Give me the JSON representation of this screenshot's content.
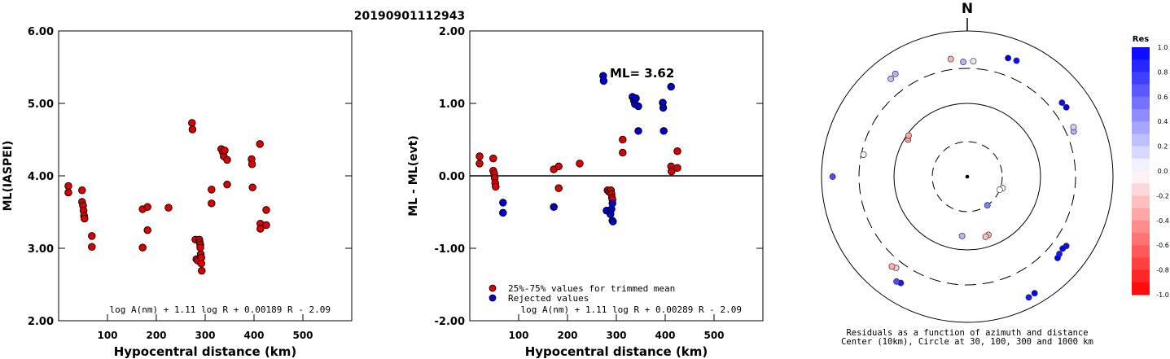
{
  "header": {
    "event_id": "20190901112943"
  },
  "chart_data": [
    {
      "type": "scatter",
      "title": "",
      "xlabel": "Hypocentral distance (km)",
      "ylabel": "ML(IASPEI)",
      "xlim": [
        0,
        600
      ],
      "ylim": [
        2.0,
        6.0
      ],
      "xticks": [
        "100",
        "200",
        "300",
        "400",
        "500"
      ],
      "yticks": [
        "2.00",
        "3.00",
        "4.00",
        "5.00",
        "6.00"
      ],
      "formula": "log A(nm) + 1.11 log R + 0.00189 R - 2.09",
      "series": [
        {
          "color": "#dd0000",
          "points": [
            [
              20,
              3.86
            ],
            [
              20,
              3.77
            ],
            [
              48,
              3.8
            ],
            [
              48,
              3.64
            ],
            [
              50,
              3.59
            ],
            [
              51,
              3.52
            ],
            [
              52,
              3.45
            ],
            [
              53,
              3.41
            ],
            [
              68,
              3.17
            ],
            [
              68,
              3.02
            ],
            [
              172,
              3.54
            ],
            [
              172,
              3.01
            ],
            [
              182,
              3.57
            ],
            [
              182,
              3.25
            ],
            [
              225,
              3.56
            ],
            [
              273,
              4.73
            ],
            [
              274,
              4.64
            ],
            [
              280,
              3.12
            ],
            [
              282,
              2.85
            ],
            [
              285,
              2.83
            ],
            [
              288,
              3.12
            ],
            [
              289,
              3.08
            ],
            [
              290,
              3.05
            ],
            [
              290,
              3.01
            ],
            [
              291,
              2.92
            ],
            [
              292,
              2.87
            ],
            [
              292,
              2.79
            ],
            [
              293,
              2.69
            ],
            [
              313,
              3.81
            ],
            [
              313,
              3.62
            ],
            [
              333,
              4.37
            ],
            [
              336,
              4.33
            ],
            [
              338,
              4.27
            ],
            [
              340,
              4.35
            ],
            [
              345,
              3.88
            ],
            [
              345,
              4.22
            ],
            [
              395,
              4.23
            ],
            [
              396,
              4.16
            ],
            [
              397,
              3.84
            ],
            [
              412,
              4.44
            ],
            [
              413,
              3.34
            ],
            [
              413,
              3.27
            ],
            [
              425,
              3.53
            ],
            [
              425,
              3.32
            ]
          ]
        }
      ]
    },
    {
      "type": "scatter",
      "title": "",
      "xlabel": "Hypocentral distance (km)",
      "ylabel": "ML - ML(evt)",
      "xlim": [
        0,
        600
      ],
      "ylim": [
        -2.0,
        2.0
      ],
      "xticks": [
        "100",
        "200",
        "300",
        "400",
        "500"
      ],
      "yticks": [
        "-2.00",
        "-1.00",
        "0.00",
        "1.00",
        "2.00"
      ],
      "annotation": "ML= 3.62",
      "formula": "log A(nm) + 1.11 log R + 0.00289 R - 2.09",
      "legend": [
        {
          "label": "25%-75% values for trimmed mean",
          "color": "#dd0000"
        },
        {
          "label": "Rejected values",
          "color": "#0000cc"
        }
      ],
      "series": [
        {
          "name": "25%-75% values for trimmed mean",
          "color": "#dd0000",
          "points": [
            [
              20,
              0.27
            ],
            [
              20,
              0.17
            ],
            [
              48,
              0.24
            ],
            [
              48,
              0.07
            ],
            [
              50,
              0.03
            ],
            [
              51,
              -0.03
            ],
            [
              52,
              -0.1
            ],
            [
              53,
              -0.15
            ],
            [
              172,
              0.09
            ],
            [
              182,
              0.13
            ],
            [
              182,
              -0.17
            ],
            [
              225,
              0.17
            ],
            [
              282,
              -0.2
            ],
            [
              285,
              -0.22
            ],
            [
              289,
              -0.2
            ],
            [
              290,
              -0.25
            ],
            [
              291,
              -0.3
            ],
            [
              292,
              -0.33
            ],
            [
              313,
              0.5
            ],
            [
              313,
              0.32
            ],
            [
              412,
              0.13
            ],
            [
              413,
              0.06
            ],
            [
              425,
              0.34
            ],
            [
              425,
              0.11
            ]
          ]
        },
        {
          "name": "Rejected values",
          "color": "#0000cc",
          "points": [
            [
              68,
              -0.37
            ],
            [
              68,
              -0.51
            ],
            [
              172,
              -0.43
            ],
            [
              273,
              1.38
            ],
            [
              274,
              1.31
            ],
            [
              280,
              -0.48
            ],
            [
              288,
              -0.53
            ],
            [
              290,
              -0.46
            ],
            [
              292,
              -0.38
            ],
            [
              292,
              -0.62
            ],
            [
              293,
              -0.63
            ],
            [
              333,
              1.09
            ],
            [
              336,
              1.04
            ],
            [
              338,
              0.99
            ],
            [
              340,
              1.07
            ],
            [
              345,
              0.62
            ],
            [
              345,
              0.96
            ],
            [
              395,
              1.01
            ],
            [
              396,
              0.94
            ],
            [
              397,
              0.62
            ],
            [
              412,
              1.23
            ]
          ]
        }
      ]
    },
    {
      "type": "polar-scatter",
      "north_label": "N",
      "caption_line1": "Residuals as a function of azimuth and distance",
      "caption_line2": "Center (10km), Circle at 30, 100, 300 and 1000 km",
      "colorbar": {
        "title": "Res",
        "ticks": [
          "1.0",
          "0.8",
          "0.6",
          "0.4",
          "0.2",
          "0.0",
          "-0.2",
          "-0.4",
          "-0.6",
          "-0.8",
          "-1.0"
        ],
        "top_color": "#0000ff",
        "bottom_color": "#ff0000"
      },
      "points": [
        {
          "az": 19,
          "dist_km": 520,
          "res": 1.0
        },
        {
          "az": 23,
          "dist_km": 530,
          "res": 0.95
        },
        {
          "az": 3,
          "dist_km": 380,
          "res": 0.1
        },
        {
          "az": 358,
          "dist_km": 370,
          "res": 0.3
        },
        {
          "az": 352,
          "dist_km": 420,
          "res": -0.3
        },
        {
          "az": 325,
          "dist_km": 520,
          "res": 0.3
        },
        {
          "az": 322,
          "dist_km": 500,
          "res": 0.25
        },
        {
          "az": 52,
          "dist_km": 440,
          "res": 0.95
        },
        {
          "az": 55,
          "dist_km": 450,
          "res": 1.0
        },
        {
          "az": 67,
          "dist_km": 380,
          "res": 0.3
        },
        {
          "az": 65,
          "dist_km": 400,
          "res": 0.2
        },
        {
          "az": 270,
          "dist_km": 700,
          "res": 0.7
        },
        {
          "az": 282,
          "dist_km": 280,
          "res": 0.05
        },
        {
          "az": 302,
          "dist_km": 90,
          "res": -0.4
        },
        {
          "az": 305,
          "dist_km": 95,
          "res": -0.35
        },
        {
          "az": 108,
          "dist_km": 32,
          "res": 0.05
        },
        {
          "az": 112,
          "dist_km": 30,
          "res": 0.0
        },
        {
          "az": 160,
          "dist_km": 70,
          "res": -0.3
        },
        {
          "az": 163,
          "dist_km": 72,
          "res": -0.25
        },
        {
          "az": 185,
          "dist_km": 65,
          "res": 0.3
        },
        {
          "az": 145,
          "dist_km": 30,
          "res": 0.5
        },
        {
          "az": 125,
          "dist_km": 450,
          "res": 0.95
        },
        {
          "az": 127,
          "dist_km": 430,
          "res": 1.0
        },
        {
          "az": 130,
          "dist_km": 440,
          "res": 0.9
        },
        {
          "az": 132,
          "dist_km": 460,
          "res": 1.0
        },
        {
          "az": 150,
          "dist_km": 700,
          "res": 1.0
        },
        {
          "az": 153,
          "dist_km": 720,
          "res": 0.9
        },
        {
          "az": 212,
          "dist_km": 520,
          "res": 0.9
        },
        {
          "az": 214,
          "dist_km": 540,
          "res": 0.7
        },
        {
          "az": 218,
          "dist_km": 380,
          "res": -0.2
        },
        {
          "az": 220,
          "dist_km": 400,
          "res": -0.3
        }
      ]
    }
  ]
}
